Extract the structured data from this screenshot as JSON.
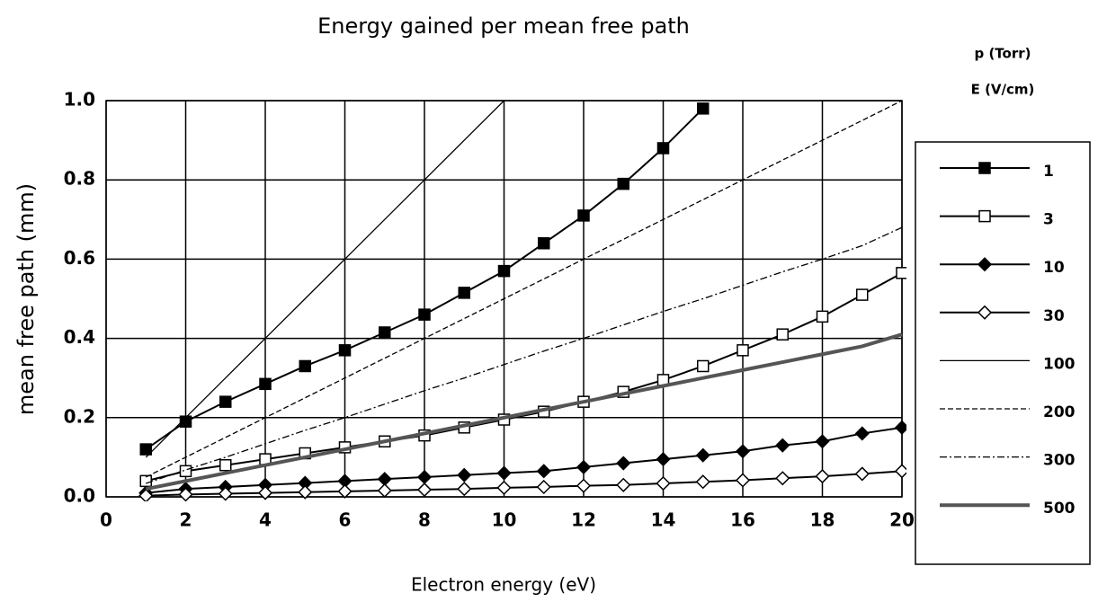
{
  "chart_data": {
    "type": "line",
    "title": "Energy gained per mean free path",
    "x_label": "Electron energy (eV)",
    "y_label": "mean free path (mm)",
    "legend_title": [
      "p (Torr)",
      "E (V/cm)"
    ],
    "x": [
      1,
      2,
      3,
      4,
      5,
      6,
      7,
      8,
      9,
      10,
      11,
      12,
      13,
      14,
      15,
      16,
      17,
      18,
      19,
      20
    ],
    "xlim": [
      0,
      20
    ],
    "xticks": [
      0,
      2,
      4,
      6,
      8,
      10,
      12,
      14,
      16,
      18,
      20
    ],
    "ylim": [
      0,
      1
    ],
    "yticks": [
      {
        "value": 0,
        "label": "0.0"
      },
      0.2,
      0.4,
      0.6,
      0.8,
      {
        "value": 1,
        "label": "1.0"
      }
    ],
    "grid": true,
    "series": [
      {
        "name": "1",
        "color": "#000",
        "marker": "square-filled",
        "dash": "solid",
        "width": 2,
        "values": [
          0.12,
          0.19,
          0.24,
          0.285,
          0.33,
          0.37,
          0.415,
          0.46,
          0.515,
          0.57,
          0.64,
          0.71,
          0.79,
          0.88,
          0.98,
          null,
          null,
          null,
          null,
          null
        ]
      },
      {
        "name": "3",
        "color": "#000",
        "marker": "square-open",
        "dash": "solid",
        "width": 2,
        "values": [
          0.04,
          0.065,
          0.08,
          0.095,
          0.11,
          0.125,
          0.14,
          0.155,
          0.175,
          0.195,
          0.215,
          0.24,
          0.265,
          0.295,
          0.33,
          0.37,
          0.41,
          0.455,
          0.51,
          0.565
        ]
      },
      {
        "name": "10",
        "color": "#000",
        "marker": "diamond-filled",
        "dash": "solid",
        "width": 2,
        "values": [
          0.01,
          0.02,
          0.025,
          0.03,
          0.035,
          0.04,
          0.045,
          0.05,
          0.055,
          0.06,
          0.065,
          0.075,
          0.085,
          0.095,
          0.105,
          0.115,
          0.13,
          0.14,
          0.16,
          0.175
        ]
      },
      {
        "name": "30",
        "color": "#000",
        "marker": "diamond-open",
        "dash": "solid",
        "width": 2,
        "values": [
          0.003,
          0.006,
          0.008,
          0.01,
          0.012,
          0.014,
          0.016,
          0.018,
          0.02,
          0.023,
          0.025,
          0.028,
          0.03,
          0.034,
          0.038,
          0.042,
          0.047,
          0.052,
          0.058,
          0.065
        ]
      },
      {
        "name": "100",
        "color": "#000",
        "marker": "none",
        "dash": "solid",
        "width": 1.3,
        "values": [
          0.1,
          0.2,
          0.3,
          0.4,
          0.5,
          0.6,
          0.7,
          0.8,
          0.9,
          1.0,
          null,
          null,
          null,
          null,
          null,
          null,
          null,
          null,
          null,
          null
        ]
      },
      {
        "name": "200",
        "color": "#000",
        "marker": "none",
        "dash": "dashed",
        "width": 1.3,
        "values": [
          0.05,
          0.1,
          0.15,
          0.2,
          0.25,
          0.3,
          0.35,
          0.4,
          0.45,
          0.5,
          0.55,
          0.6,
          0.65,
          0.7,
          0.75,
          0.8,
          0.85,
          0.9,
          0.95,
          1.0
        ]
      },
      {
        "name": "300",
        "color": "#000",
        "marker": "none",
        "dash": "dashdot",
        "width": 1.3,
        "values": [
          0.034,
          0.068,
          0.1,
          0.134,
          0.168,
          0.2,
          0.234,
          0.268,
          0.3,
          0.334,
          0.368,
          0.4,
          0.434,
          0.468,
          0.5,
          0.534,
          0.568,
          0.6,
          0.634,
          0.68
        ]
      },
      {
        "name": "500",
        "color": "#555",
        "marker": "none",
        "dash": "solid",
        "width": 4,
        "values": [
          0.02,
          0.04,
          0.06,
          0.08,
          0.1,
          0.12,
          0.14,
          0.16,
          0.18,
          0.2,
          0.22,
          0.24,
          0.26,
          0.28,
          0.3,
          0.32,
          0.34,
          0.36,
          0.38,
          0.41
        ]
      }
    ]
  }
}
